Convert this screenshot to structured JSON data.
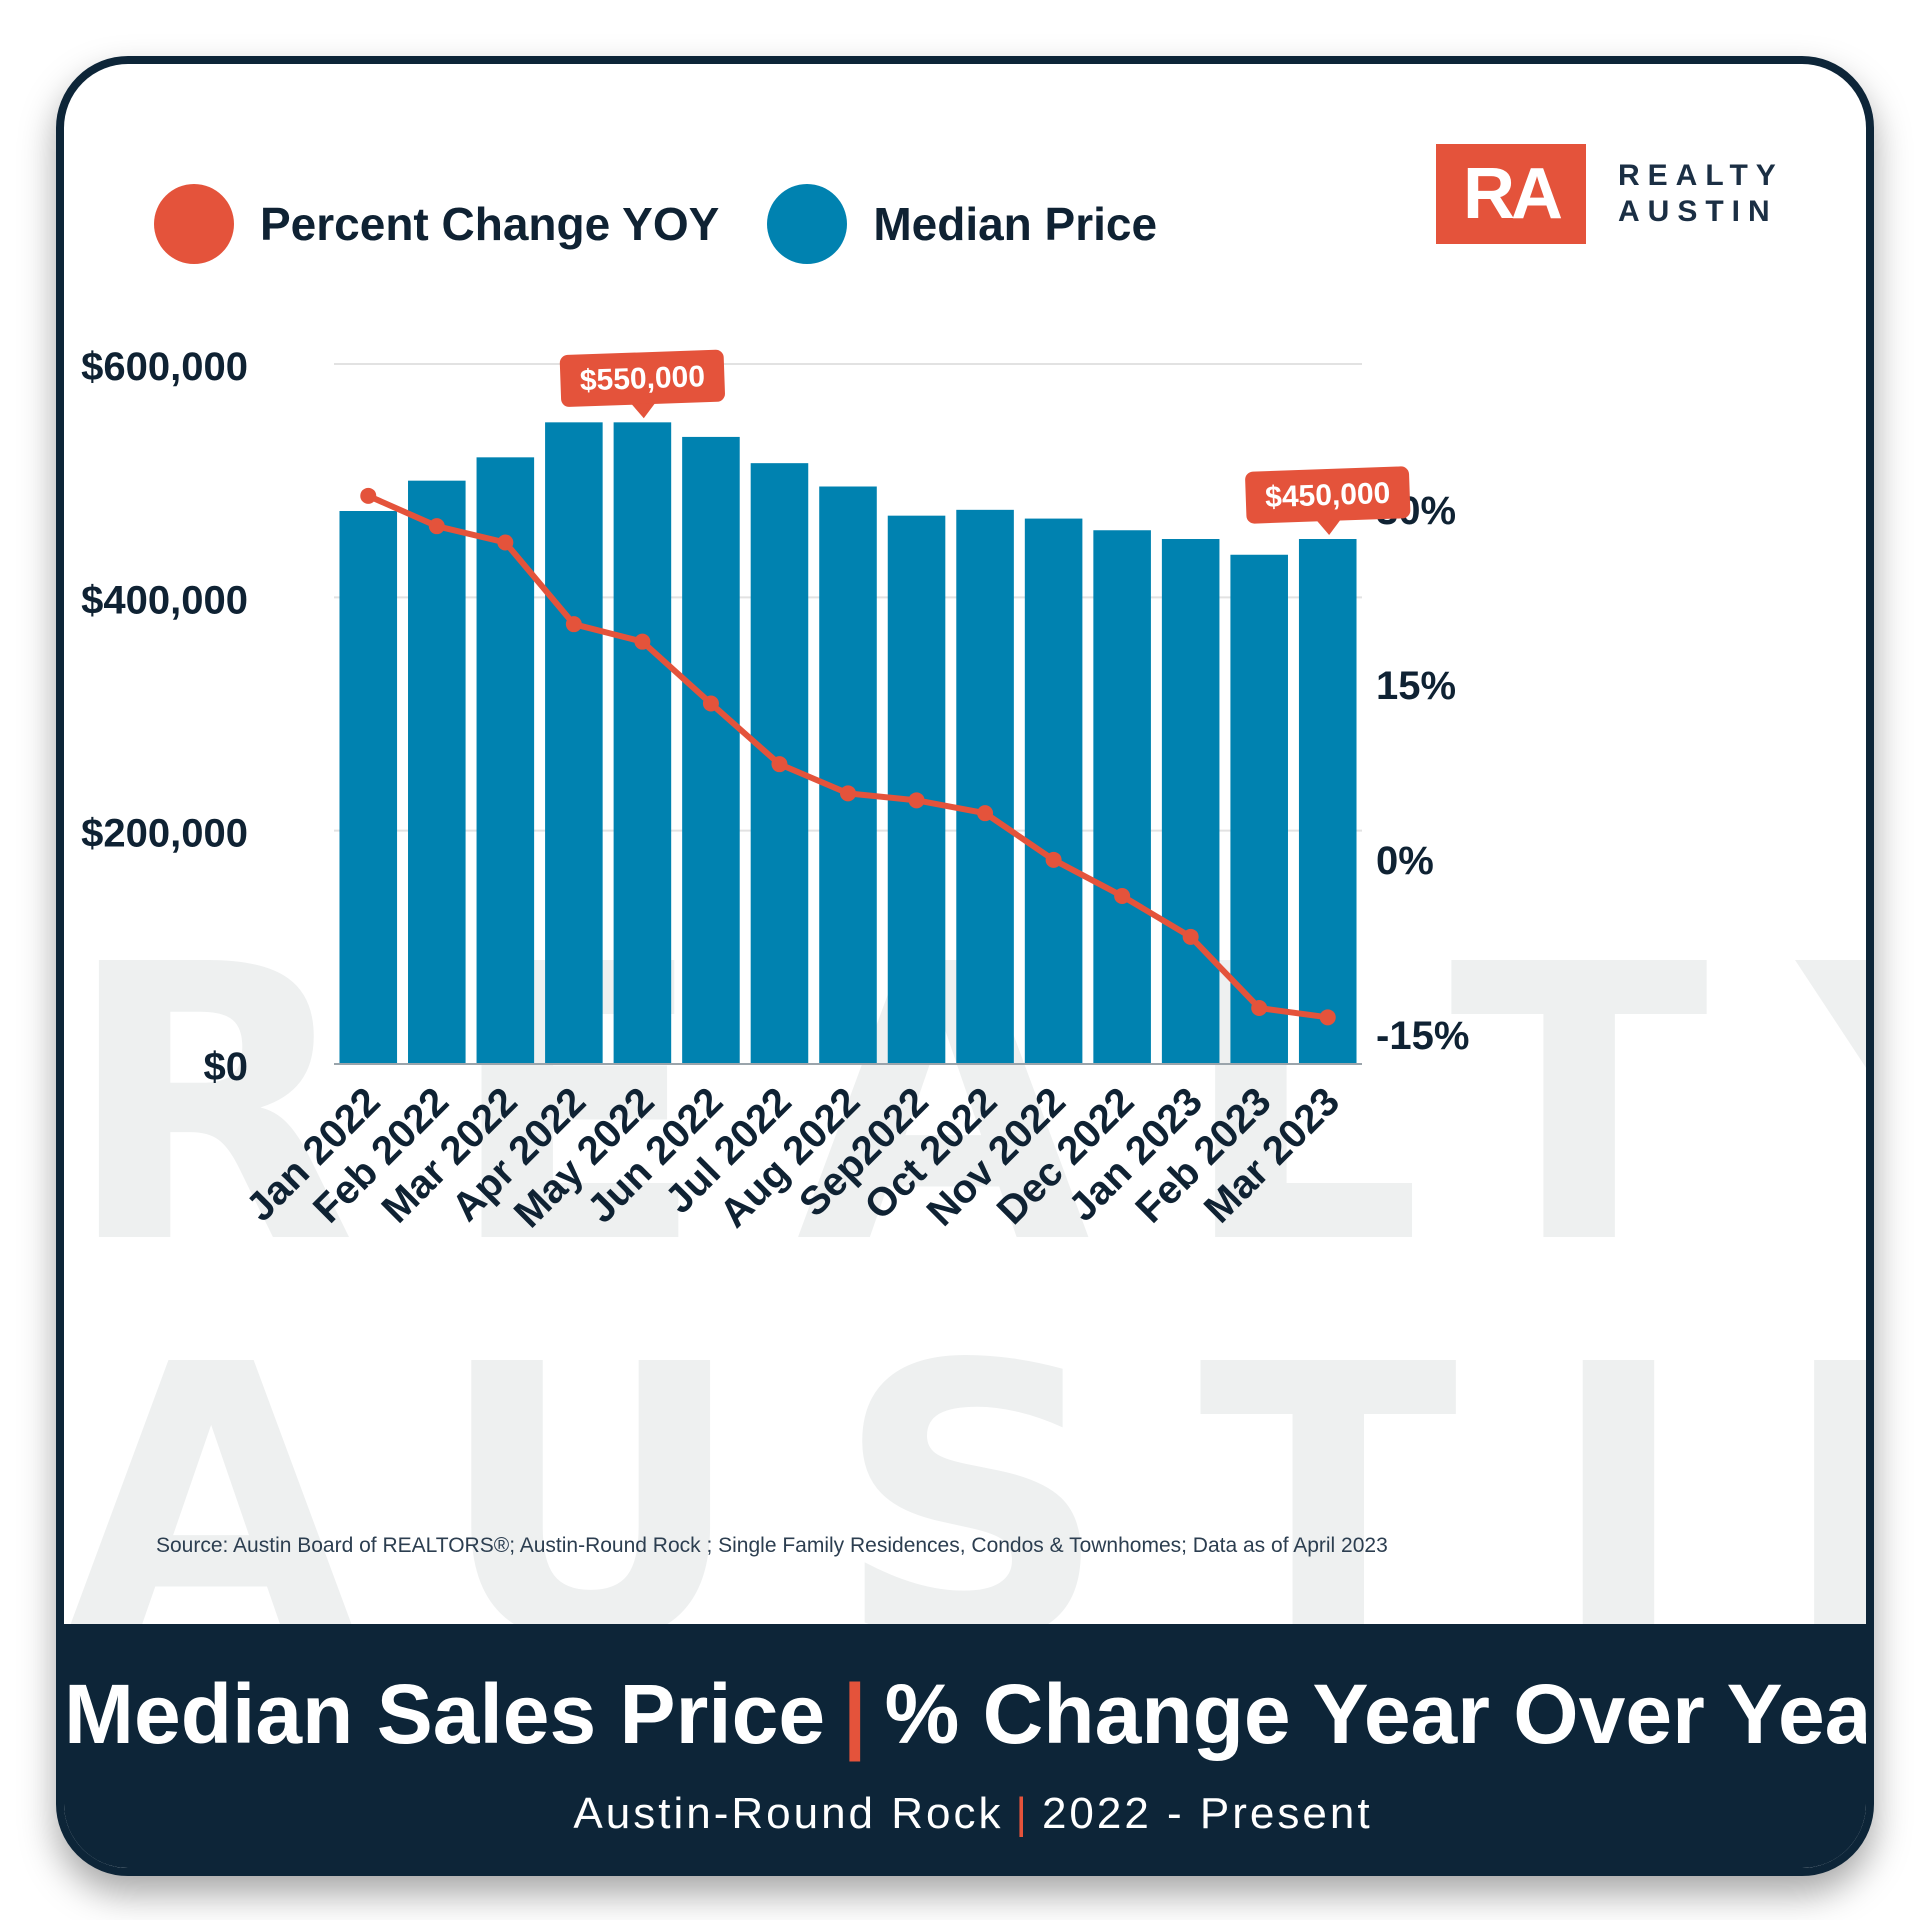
{
  "legend": {
    "items": [
      {
        "label": "Percent Change YOY",
        "color": "#e4533b"
      },
      {
        "label": "Median Price",
        "color": "#0082b0"
      }
    ]
  },
  "logo": {
    "mark": "RA",
    "line1": "REALTY",
    "line2": "AUSTIN"
  },
  "watermark": {
    "line1": "REALTY",
    "line2": "AUSTIN"
  },
  "source": "Source: Austin Board of REALTORS®; Austin-Round Rock ; Single Family Residences, Condos & Townhomes; Data as of April 2023",
  "footer": {
    "title_left": "Median Sales Price",
    "separator": "|",
    "title_right": "% Change Year Over Year",
    "subtitle_left": "Austin-Round Rock",
    "subtitle_right": "2022 - Present"
  },
  "colors": {
    "bar": "#0082b0",
    "line": "#e4533b",
    "grid": "#e2e2e2",
    "text": "#0f2233"
  },
  "chart_data": {
    "type": "bar",
    "title": "Median Sales Price | % Change Year Over Year",
    "categories": [
      "Jan 2022",
      "Feb 2022",
      "Mar 2022",
      "Apr 2022",
      "May 2022",
      "Jun 2022",
      "Jul 2022",
      "Aug 2022",
      "Sep2022",
      "Oct 2022",
      "Nov 2022",
      "Dec 2022",
      "Jan 2023",
      "Feb 2023",
      "Mar 2023"
    ],
    "series": [
      {
        "name": "Median Price",
        "type": "bar",
        "axis": "left",
        "values": [
          474000,
          500000,
          520000,
          550000,
          550000,
          537500,
          515000,
          495000,
          470000,
          475000,
          467500,
          457500,
          450000,
          436500,
          450000
        ]
      },
      {
        "name": "Percent Change YOY",
        "type": "line",
        "axis": "right",
        "values": [
          31.2,
          28.6,
          27.2,
          20.2,
          18.7,
          13.4,
          8.2,
          5.7,
          5.1,
          4.0,
          0.0,
          -3.1,
          -6.6,
          -12.7,
          -13.5
        ]
      }
    ],
    "y_left": {
      "ticks": [
        0,
        200000,
        400000,
        600000
      ],
      "tick_labels": [
        "$0",
        "$200,000",
        "$400,000",
        "$600,000"
      ],
      "range": [
        0,
        600000
      ]
    },
    "y_right": {
      "ticks": [
        -15,
        0,
        15,
        30
      ],
      "tick_labels": [
        "-15%",
        "0%",
        "15%",
        "30%"
      ],
      "range": [
        -17.5,
        42.5
      ]
    },
    "annotations": [
      {
        "category": "May 2022",
        "label": "$550,000",
        "value": 550000
      },
      {
        "category": "Mar 2023",
        "label": "$450,000",
        "value": 450000
      }
    ],
    "grid": true,
    "legend_position": "top-left"
  }
}
